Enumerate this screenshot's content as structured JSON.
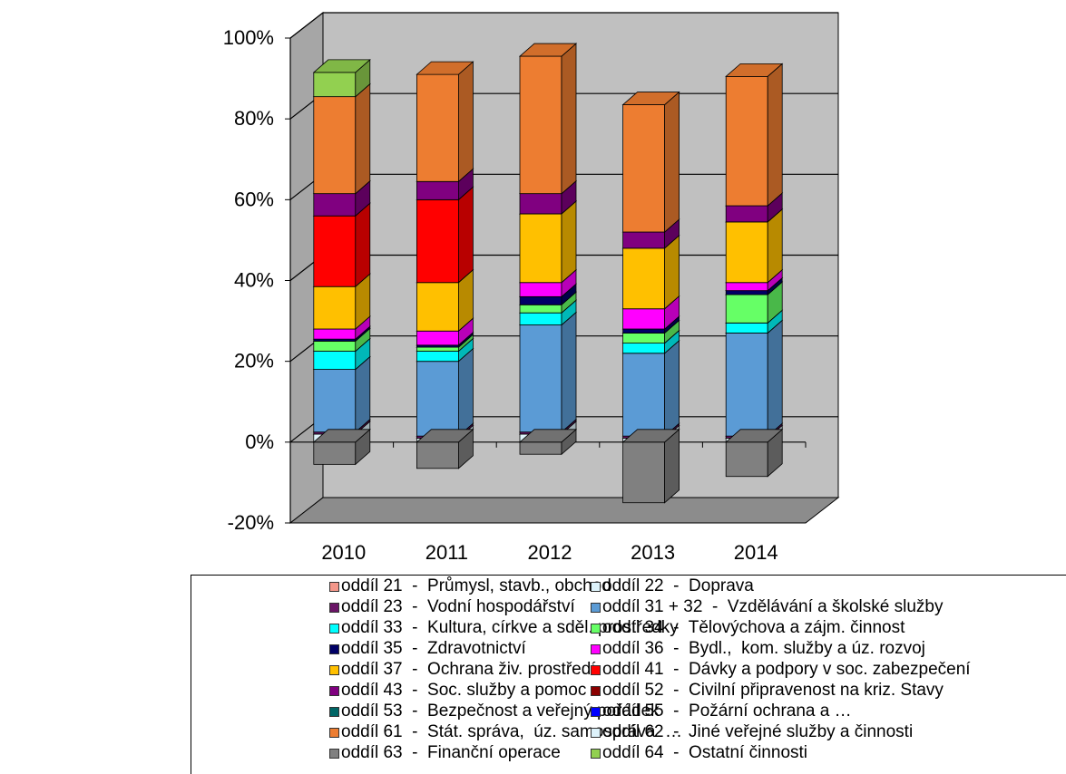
{
  "chart_data": {
    "type": "bar",
    "stacked": true,
    "three_d": true,
    "categories": [
      "2010",
      "2011",
      "2012",
      "2013",
      "2014"
    ],
    "ylim": [
      -20,
      100
    ],
    "yticks": [
      -20,
      0,
      20,
      40,
      60,
      80,
      100
    ],
    "ytick_labels": [
      "-20%",
      "0%",
      "20%",
      "40%",
      "60%",
      "80%",
      "100%"
    ],
    "grid": true,
    "legend_position": "bottom",
    "series": [
      {
        "name": "oddíl 21  -  Průmysl, stavb., obchod",
        "color": "#F4978A",
        "values": [
          0.0,
          0.0,
          0.0,
          0.0,
          0.0
        ]
      },
      {
        "name": "oddíl 22  -  Doprava",
        "color": "#DDF2FA",
        "values": [
          2.0,
          1.0,
          2.0,
          1.0,
          1.0
        ]
      },
      {
        "name": "oddíl 23  -  Vodní hospodářství",
        "color": "#6A1466",
        "values": [
          0.5,
          0.5,
          0.5,
          0.5,
          0.5
        ]
      },
      {
        "name": "oddíl 31 + 32  -  Vzdělávání a školské služby",
        "color": "#5B9BD5",
        "values": [
          15.5,
          18.5,
          26.5,
          20.5,
          25.5
        ]
      },
      {
        "name": "oddíl 33  -  Kultura, církve a sděl. prostředky",
        "color": "#00FFFF",
        "values": [
          4.5,
          2.5,
          3.0,
          2.5,
          2.5
        ]
      },
      {
        "name": "oddíl 34  -  Tělovýchova a zájm. činnost",
        "color": "#66FF66",
        "values": [
          2.5,
          1.0,
          2.0,
          2.5,
          7.0
        ]
      },
      {
        "name": "oddíl 35  -  Zdravotnictví",
        "color": "#000066",
        "values": [
          0.5,
          0.5,
          2.0,
          1.0,
          1.0
        ]
      },
      {
        "name": "oddíl 36  -  Bydl.,  kom. služby a úz. rozvoj",
        "color": "#FF00FF",
        "values": [
          2.5,
          3.5,
          3.5,
          5.0,
          2.0
        ]
      },
      {
        "name": "oddíl 37  -  Ochrana živ. prostředí",
        "color": "#FFC000",
        "values": [
          10.5,
          12.0,
          17.0,
          15.0,
          15.0
        ]
      },
      {
        "name": "oddíl 41  -  Dávky a podpory v soc. zabezpečení",
        "color": "#FF0000",
        "values": [
          17.5,
          20.5,
          0.0,
          0.0,
          0.0
        ]
      },
      {
        "name": "oddíl 43  -  Soc. služby a pomoc",
        "color": "#800080",
        "values": [
          5.5,
          4.5,
          5.0,
          4.0,
          4.0
        ]
      },
      {
        "name": "oddíl 52  -  Civilní připravenost na kriz. Stavy",
        "color": "#8B0000",
        "values": [
          0.0,
          0.0,
          0.0,
          0.0,
          0.0
        ]
      },
      {
        "name": "oddíl 53  -  Bezpečnost a veřejný pořádek",
        "color": "#006666",
        "values": [
          0.0,
          0.0,
          0.0,
          0.0,
          0.0
        ]
      },
      {
        "name": "oddíl 55  -  Požární ochrana a …",
        "color": "#0000FF",
        "values": [
          0.0,
          0.0,
          0.0,
          0.0,
          0.0
        ]
      },
      {
        "name": "oddíl 61  -  Stát. správa,  úz. samospráva  …",
        "color": "#ED7D31",
        "values": [
          24.0,
          26.5,
          34.0,
          31.5,
          32.0
        ]
      },
      {
        "name": "oddíl 62  -  Jiné veřejné služby a činnosti",
        "color": "#DDF2FA",
        "values": [
          0.0,
          0.0,
          0.0,
          0.0,
          0.0
        ]
      },
      {
        "name": "oddíl 63  -  Finanční operace",
        "color": "#808080",
        "values": [
          -5.5,
          -6.5,
          -3.0,
          -15.0,
          -8.5
        ]
      },
      {
        "name": "oddíl 64  -  Ostatní činnosti",
        "color": "#92D050",
        "values": [
          6.0,
          0.0,
          0.0,
          0.0,
          0.0
        ]
      }
    ]
  }
}
